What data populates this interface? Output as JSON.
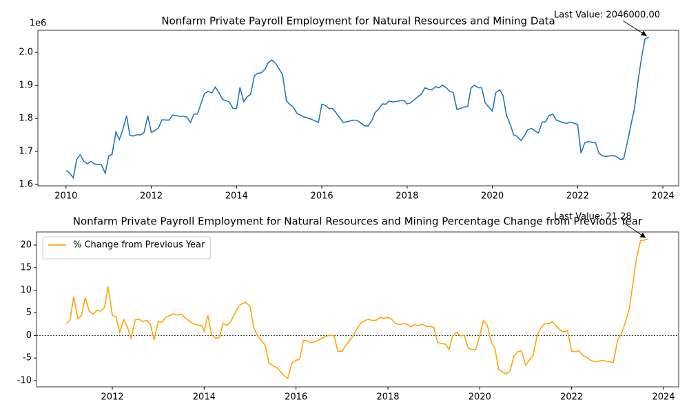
{
  "chart_data": [
    {
      "type": "line",
      "title": "Nonfarm Private Payroll Employment for Natural Resources and Mining Data",
      "offset_label": "1e6",
      "annotation": "Last Value: 2046000.00",
      "x": [
        2010.0,
        2010.08,
        2010.17,
        2010.25,
        2010.33,
        2010.42,
        2010.5,
        2010.58,
        2010.67,
        2010.83,
        2010.92,
        2011.0,
        2011.08,
        2011.17,
        2011.25,
        2011.33,
        2011.42,
        2011.5,
        2011.58,
        2011.67,
        2011.75,
        2011.83,
        2011.92,
        2012.0,
        2012.08,
        2012.17,
        2012.25,
        2012.42,
        2012.5,
        2012.58,
        2012.67,
        2012.75,
        2012.83,
        2012.92,
        2013.0,
        2013.08,
        2013.25,
        2013.33,
        2013.42,
        2013.5,
        2013.58,
        2013.67,
        2013.83,
        2013.92,
        2014.0,
        2014.08,
        2014.17,
        2014.25,
        2014.33,
        2014.42,
        2014.5,
        2014.58,
        2014.67,
        2014.75,
        2014.83,
        2014.92,
        2015.0,
        2015.08,
        2015.17,
        2015.25,
        2015.33,
        2015.42,
        2015.58,
        2015.75,
        2015.92,
        2016.0,
        2016.08,
        2016.17,
        2016.25,
        2016.33,
        2016.5,
        2016.58,
        2016.75,
        2016.83,
        2016.92,
        2017.0,
        2017.08,
        2017.17,
        2017.25,
        2017.33,
        2017.42,
        2017.5,
        2017.58,
        2017.67,
        2017.92,
        2018.0,
        2018.08,
        2018.25,
        2018.33,
        2018.42,
        2018.5,
        2018.58,
        2018.67,
        2018.75,
        2018.83,
        2018.92,
        2019.0,
        2019.08,
        2019.17,
        2019.33,
        2019.42,
        2019.5,
        2019.58,
        2019.67,
        2019.75,
        2019.83,
        2020.0,
        2020.08,
        2020.17,
        2020.25,
        2020.33,
        2020.42,
        2020.5,
        2020.58,
        2020.67,
        2020.75,
        2020.83,
        2020.92,
        2021.0,
        2021.08,
        2021.17,
        2021.25,
        2021.33,
        2021.42,
        2021.5,
        2021.67,
        2021.75,
        2021.83,
        2022.0,
        2022.08,
        2022.17,
        2022.25,
        2022.42,
        2022.5,
        2022.58,
        2022.67,
        2022.83,
        2022.92,
        2023.0,
        2023.08,
        2023.17,
        2023.25,
        2023.33,
        2023.42,
        2023.5,
        2023.58,
        2023.67
      ],
      "series": [
        {
          "color": "#1f77b4",
          "values": [
            1.642,
            1.636,
            1.62,
            1.676,
            1.69,
            1.67,
            1.663,
            1.67,
            1.662,
            1.66,
            1.634,
            1.686,
            1.692,
            1.759,
            1.736,
            1.765,
            1.808,
            1.748,
            1.747,
            1.751,
            1.75,
            1.758,
            1.808,
            1.758,
            1.763,
            1.772,
            1.796,
            1.795,
            1.81,
            1.809,
            1.806,
            1.807,
            1.804,
            1.788,
            1.813,
            1.813,
            1.876,
            1.882,
            1.877,
            1.895,
            1.88,
            1.858,
            1.85,
            1.83,
            1.83,
            1.894,
            1.851,
            1.866,
            1.873,
            1.93,
            1.937,
            1.938,
            1.95,
            1.97,
            1.977,
            1.966,
            1.95,
            1.932,
            1.853,
            1.843,
            1.834,
            1.815,
            1.805,
            1.798,
            1.788,
            1.843,
            1.84,
            1.83,
            1.83,
            1.818,
            1.788,
            1.79,
            1.795,
            1.794,
            1.786,
            1.778,
            1.777,
            1.793,
            1.818,
            1.828,
            1.844,
            1.843,
            1.853,
            1.85,
            1.855,
            1.844,
            1.847,
            1.866,
            1.873,
            1.893,
            1.888,
            1.887,
            1.896,
            1.893,
            1.901,
            1.893,
            1.882,
            1.879,
            1.827,
            1.834,
            1.836,
            1.892,
            1.901,
            1.893,
            1.893,
            1.848,
            1.822,
            1.878,
            1.887,
            1.87,
            1.81,
            1.782,
            1.75,
            1.746,
            1.733,
            1.747,
            1.766,
            1.77,
            1.762,
            1.756,
            1.789,
            1.79,
            1.809,
            1.813,
            1.795,
            1.787,
            1.785,
            1.789,
            1.782,
            1.695,
            1.727,
            1.73,
            1.726,
            1.695,
            1.687,
            1.685,
            1.688,
            1.684,
            1.676,
            1.678,
            1.73,
            1.78,
            1.828,
            1.916,
            1.985,
            2.041,
            2.046
          ]
        }
      ],
      "xlim": [
        2009.34,
        2024.37
      ],
      "xticks": [
        2010,
        2012,
        2014,
        2016,
        2018,
        2020,
        2022,
        2024
      ],
      "ylim": [
        1.596,
        2.067
      ],
      "yticks": [
        1.6,
        1.7,
        1.8,
        1.9,
        {
          "value": 2,
          "label": "2.0"
        }
      ]
    },
    {
      "type": "line",
      "title": "Nonfarm Private Payroll Employment for Natural Resources and Mining Percentage Change from Previous Year",
      "annotation": "Last Value: 21.28",
      "legend": "upper left",
      "hline": 0,
      "x": [
        2011.0,
        2011.08,
        2011.16,
        2011.25,
        2011.33,
        2011.41,
        2011.5,
        2011.58,
        2011.66,
        2011.75,
        2011.83,
        2011.91,
        2012.0,
        2012.08,
        2012.16,
        2012.25,
        2012.33,
        2012.41,
        2012.5,
        2012.58,
        2012.66,
        2012.75,
        2012.83,
        2012.91,
        2013.0,
        2013.08,
        2013.16,
        2013.33,
        2013.41,
        2013.5,
        2013.66,
        2013.75,
        2013.83,
        2013.95,
        2014.0,
        2014.08,
        2014.16,
        2014.25,
        2014.33,
        2014.41,
        2014.5,
        2014.58,
        2014.66,
        2014.75,
        2014.83,
        2014.91,
        2015.0,
        2015.08,
        2015.16,
        2015.25,
        2015.33,
        2015.41,
        2015.5,
        2015.58,
        2015.66,
        2015.75,
        2015.82,
        2015.91,
        2016.0,
        2016.08,
        2016.16,
        2016.25,
        2016.33,
        2016.41,
        2016.5,
        2016.58,
        2016.66,
        2016.75,
        2016.83,
        2016.91,
        2017.0,
        2017.08,
        2017.16,
        2017.25,
        2017.33,
        2017.41,
        2017.5,
        2017.58,
        2017.66,
        2017.75,
        2017.83,
        2017.91,
        2018.0,
        2018.08,
        2018.16,
        2018.25,
        2018.33,
        2018.41,
        2018.5,
        2018.58,
        2018.66,
        2018.75,
        2018.83,
        2018.91,
        2019.0,
        2019.08,
        2019.16,
        2019.25,
        2019.33,
        2019.41,
        2019.5,
        2019.58,
        2019.66,
        2019.75,
        2019.83,
        2019.91,
        2020.0,
        2020.08,
        2020.16,
        2020.25,
        2020.33,
        2020.41,
        2020.5,
        2020.58,
        2020.66,
        2020.75,
        2020.83,
        2020.91,
        2021.0,
        2021.08,
        2021.16,
        2021.25,
        2021.33,
        2021.41,
        2021.5,
        2021.58,
        2021.66,
        2021.75,
        2021.83,
        2021.91,
        2022.0,
        2022.08,
        2022.16,
        2022.25,
        2022.33,
        2022.41,
        2022.5,
        2022.58,
        2022.66,
        2022.75,
        2022.83,
        2022.91,
        2023.0,
        2023.08,
        2023.16,
        2023.25,
        2023.33,
        2023.41,
        2023.5,
        2023.58,
        2023.66
      ],
      "series": [
        {
          "name": "% Change from Previous Year",
          "color": "#ffa500",
          "values": [
            2.6,
            3.4,
            8.6,
            3.7,
            4.4,
            8.4,
            5.3,
            4.7,
            5.5,
            5.4,
            6.2,
            10.8,
            4.4,
            4.2,
            0.7,
            3.5,
            1.8,
            -0.6,
            3.5,
            3.6,
            3.1,
            3.3,
            2.5,
            -1.0,
            3.1,
            2.9,
            4.0,
            4.8,
            4.5,
            4.7,
            3.3,
            2.7,
            2.4,
            2.2,
            0.9,
            4.5,
            0.2,
            -0.6,
            -0.5,
            2.7,
            2.2,
            3.1,
            4.7,
            6.4,
            7.1,
            7.3,
            6.4,
            1.7,
            0.0,
            -1.2,
            -2.2,
            -6.1,
            -6.7,
            -7.1,
            -8.0,
            -9.0,
            -9.5,
            -6.1,
            -5.5,
            -5.2,
            -1.1,
            -1.2,
            -1.6,
            -1.4,
            -1.0,
            -0.5,
            -0.2,
            0.1,
            -0.1,
            -3.5,
            -3.5,
            -2.3,
            -1.2,
            0.0,
            1.6,
            2.7,
            3.3,
            3.6,
            3.3,
            3.4,
            4.0,
            3.8,
            4.0,
            3.6,
            2.7,
            2.4,
            2.6,
            2.5,
            1.9,
            2.4,
            2.2,
            2.5,
            2.0,
            2.0,
            1.8,
            -1.5,
            -1.8,
            -1.9,
            -3.1,
            -0.1,
            0.7,
            -0.1,
            0.1,
            -2.8,
            -3.1,
            -3.2,
            0.0,
            3.3,
            2.4,
            -1.5,
            -2.8,
            -7.5,
            -8.1,
            -8.5,
            -7.8,
            -4.4,
            -3.6,
            -3.4,
            -6.6,
            -5.4,
            -4.4,
            0.0,
            1.7,
            2.6,
            2.6,
            3.0,
            2.1,
            1.2,
            0.8,
            1.1,
            -3.5,
            -3.6,
            -3.4,
            -4.5,
            -4.8,
            -5.5,
            -5.8,
            -5.7,
            -5.5,
            -5.7,
            -5.8,
            -6.0,
            -1.0,
            0.3,
            2.6,
            5.7,
            11.2,
            17.0,
            21.0,
            21.1,
            21.28
          ]
        }
      ],
      "xlim": [
        2010.35,
        2024.33
      ],
      "xticks": [
        2012,
        2014,
        2016,
        2018,
        2020,
        2022,
        2024
      ],
      "ylim": [
        -11.37,
        22.9
      ],
      "yticks": [
        -10,
        -5,
        0,
        5,
        10,
        15,
        20
      ]
    }
  ]
}
